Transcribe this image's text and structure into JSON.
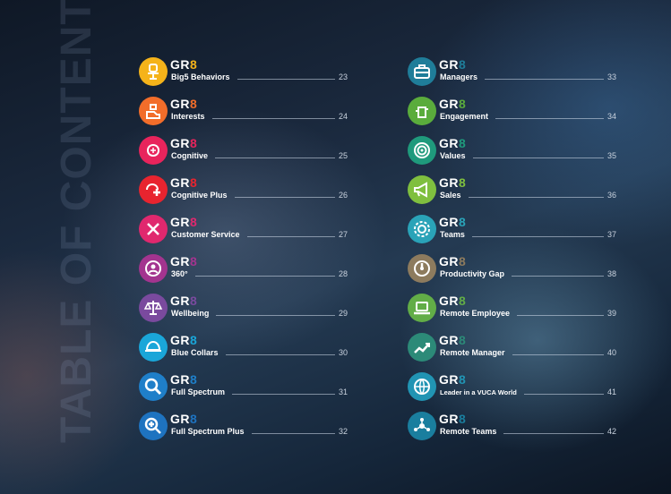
{
  "title": "TABLE OF CONTENTS",
  "logo_prefix": "GR",
  "logo_suffix": "8",
  "left_column": [
    {
      "name": "Big5 Behaviors",
      "page": "23",
      "color": "#f5b31a",
      "icon": "chair-icon"
    },
    {
      "name": "Interests",
      "page": "24",
      "color": "#f26d2a",
      "icon": "heart-hand-icon"
    },
    {
      "name": "Cognitive",
      "page": "25",
      "color": "#e8245c",
      "icon": "brain-icon"
    },
    {
      "name": "Cognitive Plus",
      "page": "26",
      "color": "#e8242f",
      "icon": "brain-plus-icon"
    },
    {
      "name": "Customer Service",
      "page": "27",
      "color": "#e0286e",
      "icon": "tools-icon"
    },
    {
      "name": "360°",
      "page": "28",
      "color": "#a3348f",
      "icon": "person-circle-icon"
    },
    {
      "name": "Wellbeing",
      "page": "29",
      "color": "#7a4a9e",
      "icon": "scale-icon"
    },
    {
      "name": "Blue Collars",
      "page": "30",
      "color": "#1aa6d9",
      "icon": "helmet-icon"
    },
    {
      "name": "Full Spectrum",
      "page": "31",
      "color": "#1f7fc9",
      "icon": "magnifier-icon"
    },
    {
      "name": "Full Spectrum Plus",
      "page": "32",
      "color": "#1e73c0",
      "icon": "magnifier-plus-icon"
    }
  ],
  "right_column": [
    {
      "name": "Managers",
      "page": "33",
      "color": "#1f7d99",
      "icon": "briefcase-icon"
    },
    {
      "name": "Engagement",
      "page": "34",
      "color": "#5aac3c",
      "icon": "hand-icon"
    },
    {
      "name": "Values",
      "page": "35",
      "color": "#1f9a7c",
      "icon": "target-icon"
    },
    {
      "name": "Sales",
      "page": "36",
      "color": "#7fbf3f",
      "icon": "megaphone-icon"
    },
    {
      "name": "Teams",
      "page": "37",
      "color": "#2aa3b8",
      "icon": "gear-icon"
    },
    {
      "name": "Productivity Gap",
      "page": "38",
      "color": "#8d7b5e",
      "icon": "gauge-icon"
    },
    {
      "name": "Remote Employee",
      "page": "39",
      "color": "#62ad47",
      "icon": "laptop-icon"
    },
    {
      "name": "Remote Manager",
      "page": "40",
      "color": "#2c8a78",
      "icon": "chart-icon"
    },
    {
      "name": "Leader in a VUCA World",
      "page": "41",
      "color": "#2194b3",
      "icon": "globe-icon"
    },
    {
      "name": "Remote Teams",
      "page": "42",
      "color": "#1a7e9e",
      "icon": "network-icon"
    }
  ]
}
